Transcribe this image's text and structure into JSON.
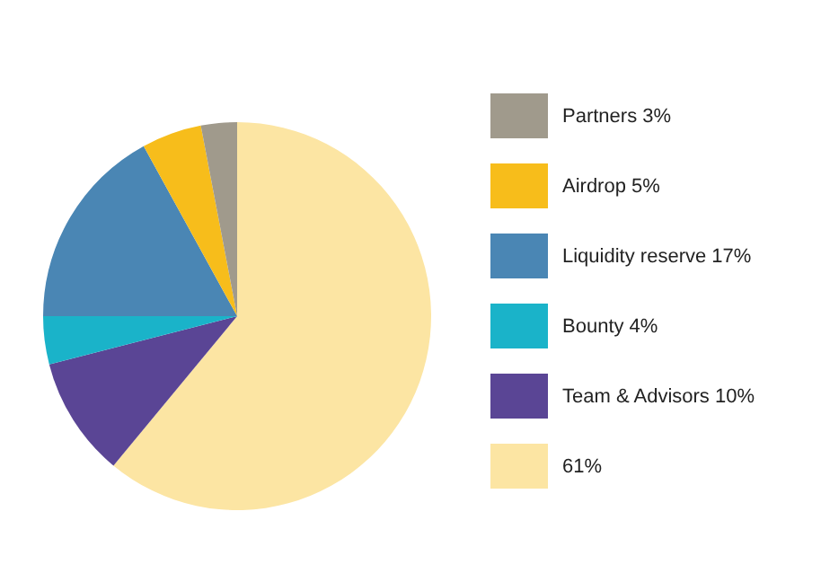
{
  "chart_data": {
    "type": "pie",
    "categories": [
      "Partners 3%",
      "Airdrop 5%",
      "Liquidity reserve 17%",
      "Bounty 4%",
      "Team & Advisors 10%",
      "61%"
    ],
    "values": [
      3,
      5,
      17,
      4,
      10,
      61
    ],
    "colors": [
      "#a09a8c",
      "#f7bd1b",
      "#4a86b4",
      "#1ab3c9",
      "#5a4595",
      "#fce5a3"
    ],
    "legend": "right"
  }
}
